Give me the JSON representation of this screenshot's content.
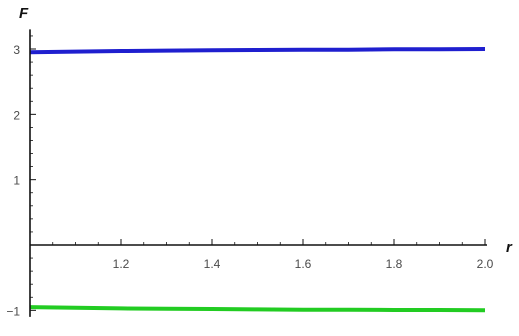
{
  "chart_data": {
    "type": "line",
    "xlabel": "r",
    "ylabel": "F",
    "xlim": [
      1.0,
      2.0
    ],
    "ylim": [
      -1.1,
      3.3
    ],
    "x_ticks": [
      1.2,
      1.4,
      1.6,
      1.8,
      2.0
    ],
    "x_tick_labels": [
      "1.2",
      "1.4",
      "1.6",
      "1.8",
      "2.0"
    ],
    "y_ticks": [
      -1,
      1,
      2,
      3
    ],
    "y_tick_labels": [
      "−1",
      "1",
      "2",
      "3"
    ],
    "grid": false,
    "series": [
      {
        "color": "#1f1fcf",
        "x": [
          1.0,
          1.1,
          1.2,
          1.3,
          1.4,
          1.5,
          1.6,
          1.7,
          1.8,
          1.9,
          2.0
        ],
        "y": [
          2.95,
          2.96,
          2.97,
          2.975,
          2.98,
          2.985,
          2.99,
          2.99,
          2.995,
          2.995,
          3.0
        ]
      },
      {
        "color": "#22cc22",
        "x": [
          1.0,
          1.1,
          1.2,
          1.3,
          1.4,
          1.5,
          1.6,
          1.7,
          1.8,
          1.9,
          2.0
        ],
        "y": [
          -0.95,
          -0.96,
          -0.97,
          -0.975,
          -0.98,
          -0.985,
          -0.99,
          -0.99,
          -0.995,
          -0.995,
          -1.0
        ]
      }
    ]
  }
}
